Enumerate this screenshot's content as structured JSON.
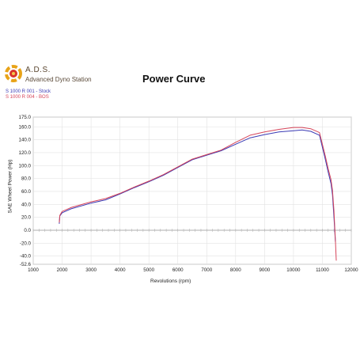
{
  "brand": {
    "name": "A.D.S.",
    "subtitle": "Advanced Dyno Station",
    "logo_colors": [
      "#e8a317",
      "#d9342b",
      "#f2c94c"
    ]
  },
  "chart_data": {
    "type": "line",
    "title": "Power Curve",
    "xlabel": "Revolutions (rpm)",
    "ylabel": "SAE Wheel Power (Hp)",
    "xlim": [
      1000,
      12000
    ],
    "ylim": [
      -52.6,
      175.0
    ],
    "x_ticks": [
      "1000",
      "2000",
      "3000",
      "4000",
      "5000",
      "6000",
      "7000",
      "8000",
      "9000",
      "10000",
      "11000",
      "12000"
    ],
    "y_ticks": [
      "-52.6",
      "-40.0",
      "-20.0",
      "0.0",
      "20.0",
      "40.0",
      "60.0",
      "80.0",
      "100.0",
      "120.0",
      "140.0",
      "160.0",
      "175.0"
    ],
    "y_tick_values": [
      -52.6,
      -40,
      -20,
      0,
      20,
      40,
      60,
      80,
      100,
      120,
      140,
      160,
      175
    ],
    "grid": true,
    "legend_position": "top-left",
    "series": [
      {
        "name": "S 1000 R 001 - Stock",
        "color": "#3a3ab4",
        "x": [
          1900,
          1920,
          2000,
          2300,
          3000,
          3500,
          4000,
          4500,
          5000,
          5500,
          6000,
          6500,
          7000,
          7500,
          8000,
          8500,
          9000,
          9500,
          10000,
          10300,
          10600,
          10900,
          11100,
          11200,
          11300,
          11350,
          11400,
          11450
        ],
        "y": [
          10,
          22,
          27,
          33,
          42,
          47,
          56,
          66,
          75,
          85,
          97,
          109,
          116,
          123,
          133,
          143,
          148,
          152,
          154,
          155,
          153,
          147,
          110,
          90,
          72,
          55,
          20,
          -18
        ]
      },
      {
        "name": "S 1000 R 004 - BOS",
        "color": "#d6455a",
        "x": [
          1900,
          1920,
          2000,
          2300,
          3000,
          3500,
          4000,
          4500,
          5000,
          5500,
          6000,
          6500,
          7000,
          7500,
          8000,
          8500,
          9000,
          9500,
          10000,
          10300,
          10600,
          10900,
          11100,
          11200,
          11300,
          11350,
          11400,
          11450,
          11480
        ],
        "y": [
          12,
          23,
          29,
          35,
          44,
          49,
          57,
          67,
          76,
          86,
          98,
          110,
          117,
          124,
          136,
          147,
          152,
          156,
          159,
          159,
          157,
          151,
          115,
          95,
          78,
          62,
          30,
          -15,
          -47
        ]
      }
    ]
  }
}
